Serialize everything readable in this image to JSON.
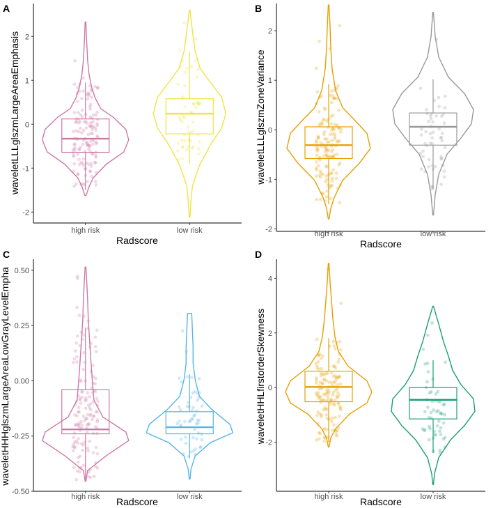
{
  "chart_data": [
    {
      "type": "violin+box",
      "panel_label": "A",
      "xlabel": "Radscore",
      "ylabel": "waveletLLLglszmLargeAreaEmphasis",
      "yticks": [
        -2,
        -1,
        0,
        1,
        2
      ],
      "ylim": [
        -2.25,
        2.75
      ],
      "grid": false,
      "categories": [
        "high risk",
        "low risk"
      ],
      "groups": [
        {
          "category": "high risk",
          "color": "#cc79a7",
          "box": {
            "q1": -0.64,
            "median": -0.33,
            "q3": 0.12,
            "whisker_low": -1.5,
            "whisker_high": 0.95
          },
          "violin_min": -1.62,
          "violin_max": 2.33
        },
        {
          "category": "low risk",
          "color": "#f0e442",
          "box": {
            "q1": -0.22,
            "median": 0.24,
            "q3": 0.58,
            "whisker_low": -0.9,
            "whisker_high": 1.65
          },
          "violin_min": -2.12,
          "violin_max": 2.6
        }
      ]
    },
    {
      "type": "violin+box",
      "panel_label": "B",
      "xlabel": "Radscore",
      "ylabel": "waveletLLLglszmZoneVariance",
      "yticks": [
        -2,
        -1,
        0,
        1,
        2
      ],
      "ylim": [
        -2.05,
        2.55
      ],
      "grid": false,
      "categories": [
        "high risk",
        "low risk"
      ],
      "groups": [
        {
          "category": "high risk",
          "color": "#e69f00",
          "box": {
            "q1": -0.58,
            "median": -0.31,
            "q3": 0.06,
            "whisker_low": -1.5,
            "whisker_high": 0.92
          },
          "violin_min": -1.8,
          "violin_max": 2.52
        },
        {
          "category": "low risk",
          "color": "#999999",
          "box": {
            "q1": -0.31,
            "median": 0.06,
            "q3": 0.34,
            "whisker_low": -1.2,
            "whisker_high": 1.02
          },
          "violin_min": -1.72,
          "violin_max": 2.37
        }
      ]
    },
    {
      "type": "violin+box",
      "panel_label": "C",
      "xlabel": "Radscore",
      "ylabel": "waveletHHHglszmLargeAreaLowGrayLevelEmpha",
      "yticks": [
        -0.5,
        -0.25,
        0.0,
        0.25,
        0.5
      ],
      "ytick_labels": [
        "-0.50",
        "-0.25",
        "0.00",
        "0.25",
        "0.50"
      ],
      "ylim": [
        -0.5,
        0.55
      ],
      "grid": false,
      "categories": [
        "high risk",
        "low risk"
      ],
      "groups": [
        {
          "category": "high risk",
          "color": "#cc79a7",
          "box": {
            "q1": -0.24,
            "median": -0.22,
            "q3": -0.04,
            "whisker_low": -0.45,
            "whisker_high": 0.24
          },
          "violin_min": -0.455,
          "violin_max": 0.515
        },
        {
          "category": "low risk",
          "color": "#56b4e9",
          "box": {
            "q1": -0.24,
            "median": -0.21,
            "q3": -0.14,
            "whisker_low": -0.35,
            "whisker_high": 0.03
          },
          "violin_min": -0.445,
          "violin_max": 0.305
        }
      ]
    },
    {
      "type": "violin+box",
      "panel_label": "D",
      "xlabel": "Radscore",
      "ylabel": "waveletHHLfirstorderSkewness",
      "yticks": [
        -2,
        0,
        2,
        4
      ],
      "ylim": [
        -3.8,
        4.7
      ],
      "grid": false,
      "categories": [
        "high risk",
        "low risk"
      ],
      "groups": [
        {
          "category": "high risk",
          "color": "#e69f00",
          "box": {
            "q1": -0.52,
            "median": 0.02,
            "q3": 0.6,
            "whisker_low": -2.0,
            "whisker_high": 1.8
          },
          "violin_min": -2.18,
          "violin_max": 4.55
        },
        {
          "category": "low risk",
          "color": "#1a9e77",
          "box": {
            "q1": -1.15,
            "median": -0.45,
            "q3": 0.0,
            "whisker_low": -2.4,
            "whisker_high": 1.0
          },
          "violin_min": -3.55,
          "violin_max": 2.98
        }
      ]
    }
  ]
}
